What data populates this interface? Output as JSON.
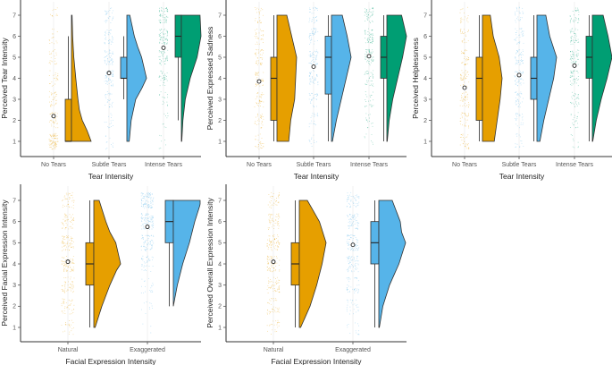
{
  "colors": {
    "No Tears": "#E69F00",
    "Subtle Tears": "#56B4E9",
    "Intense Tears": "#009E73",
    "Natural": "#E69F00",
    "Exaggerated": "#56B4E9"
  },
  "chart_data": [
    {
      "id": "tear-intensity",
      "type": "raincloud",
      "title": "",
      "xlabel": "Tear Intensity",
      "ylabel": "Perceived Tear Intensity",
      "ylim": [
        0.5,
        7.6
      ],
      "yticks": [
        1,
        2,
        3,
        4,
        5,
        6,
        7
      ],
      "grid": false,
      "categories": [
        "No Tears",
        "Subtle Tears",
        "Intense Tears"
      ],
      "groups": [
        {
          "category": "No Tears",
          "mean": 2.2,
          "box": {
            "min": 1,
            "q1": 1,
            "median": 1,
            "q3": 3,
            "max": 6
          },
          "density": [
            [
              1,
              1.0
            ],
            [
              1.5,
              0.8
            ],
            [
              2,
              0.55
            ],
            [
              2.5,
              0.4
            ],
            [
              3,
              0.33
            ],
            [
              4,
              0.22
            ],
            [
              5,
              0.12
            ],
            [
              6,
              0.06
            ],
            [
              7,
              0.03
            ]
          ],
          "jitter_weights": [
            0.38,
            0.16,
            0.14,
            0.1,
            0.1,
            0.07,
            0.05
          ]
        },
        {
          "category": "Subtle Tears",
          "mean": 4.25,
          "box": {
            "min": 3,
            "q1": 4,
            "median": 4,
            "q3": 5,
            "max": 6
          },
          "density": [
            [
              1,
              0.12
            ],
            [
              2,
              0.22
            ],
            [
              3,
              0.45
            ],
            [
              3.5,
              0.75
            ],
            [
              4,
              1.0
            ],
            [
              5,
              0.75
            ],
            [
              5.5,
              0.55
            ],
            [
              6,
              0.38
            ],
            [
              7,
              0.15
            ]
          ],
          "jitter_weights": [
            0.05,
            0.07,
            0.12,
            0.24,
            0.23,
            0.16,
            0.13
          ]
        },
        {
          "category": "Intense Tears",
          "mean": 5.45,
          "box": {
            "min": 2,
            "q1": 5,
            "median": 6,
            "q3": 7,
            "max": 7
          },
          "density": [
            [
              1,
              0.02
            ],
            [
              2,
              0.08
            ],
            [
              3,
              0.2
            ],
            [
              4,
              0.45
            ],
            [
              5,
              0.8
            ],
            [
              6,
              1.0
            ],
            [
              7,
              0.95
            ]
          ],
          "jitter_weights": [
            0.03,
            0.04,
            0.07,
            0.15,
            0.19,
            0.26,
            0.26
          ]
        }
      ]
    },
    {
      "id": "expressed-sadness",
      "type": "raincloud",
      "title": "",
      "xlabel": "Tear Intensity",
      "ylabel": "Perceived Expressed Sadness",
      "ylim": [
        0.5,
        7.6
      ],
      "yticks": [
        1,
        2,
        3,
        4,
        5,
        6,
        7
      ],
      "grid": false,
      "categories": [
        "No Tears",
        "Subtle Tears",
        "Intense Tears"
      ],
      "groups": [
        {
          "category": "No Tears",
          "mean": 3.85,
          "box": {
            "min": 1,
            "q1": 2,
            "median": 4,
            "q3": 5,
            "max": 7
          },
          "density": [
            [
              1,
              0.6
            ],
            [
              2,
              0.7
            ],
            [
              3,
              0.9
            ],
            [
              4,
              0.95
            ],
            [
              5,
              1.0
            ],
            [
              6,
              0.75
            ],
            [
              7,
              0.5
            ]
          ],
          "jitter_weights": [
            0.12,
            0.13,
            0.16,
            0.17,
            0.18,
            0.13,
            0.11
          ]
        },
        {
          "category": "Subtle Tears",
          "mean": 4.55,
          "box": {
            "min": 1,
            "q1": 3.25,
            "median": 5,
            "q3": 6,
            "max": 7
          },
          "density": [
            [
              1,
              0.05
            ],
            [
              2,
              0.25
            ],
            [
              3,
              0.5
            ],
            [
              4,
              0.75
            ],
            [
              5,
              1.0
            ],
            [
              6,
              0.8
            ],
            [
              7,
              0.55
            ]
          ],
          "jitter_weights": [
            0.05,
            0.09,
            0.13,
            0.18,
            0.22,
            0.18,
            0.15
          ]
        },
        {
          "category": "Intense Tears",
          "mean": 5.05,
          "box": {
            "min": 1,
            "q1": 4,
            "median": 5,
            "q3": 6,
            "max": 7
          },
          "density": [
            [
              1,
              0.02
            ],
            [
              2,
              0.12
            ],
            [
              3,
              0.3
            ],
            [
              4,
              0.55
            ],
            [
              5,
              0.8
            ],
            [
              6,
              1.0
            ],
            [
              7,
              0.75
            ]
          ],
          "jitter_weights": [
            0.03,
            0.07,
            0.1,
            0.15,
            0.22,
            0.23,
            0.2
          ]
        }
      ]
    },
    {
      "id": "helplessness",
      "type": "raincloud",
      "title": "",
      "xlabel": "Tear Intensity",
      "ylabel": "Perceived Helplessness",
      "ylim": [
        0.5,
        7.6
      ],
      "yticks": [
        1,
        2,
        3,
        4,
        5,
        6,
        7
      ],
      "grid": false,
      "categories": [
        "No Tears",
        "Subtle Tears",
        "Intense Tears"
      ],
      "groups": [
        {
          "category": "No Tears",
          "mean": 3.55,
          "box": {
            "min": 1,
            "q1": 2,
            "median": 4,
            "q3": 5,
            "max": 7
          },
          "density": [
            [
              1,
              0.6
            ],
            [
              2,
              0.75
            ],
            [
              3,
              0.9
            ],
            [
              4,
              1.0
            ],
            [
              5,
              0.85
            ],
            [
              6,
              0.55
            ],
            [
              7,
              0.4
            ]
          ],
          "jitter_weights": [
            0.14,
            0.15,
            0.17,
            0.18,
            0.16,
            0.11,
            0.09
          ]
        },
        {
          "category": "Subtle Tears",
          "mean": 4.15,
          "box": {
            "min": 1,
            "q1": 3,
            "median": 4,
            "q3": 5,
            "max": 7
          },
          "density": [
            [
              1,
              0.15
            ],
            [
              2,
              0.35
            ],
            [
              3,
              0.6
            ],
            [
              4,
              0.85
            ],
            [
              5,
              1.0
            ],
            [
              6,
              0.65
            ],
            [
              7,
              0.45
            ]
          ],
          "jitter_weights": [
            0.07,
            0.11,
            0.15,
            0.2,
            0.2,
            0.15,
            0.12
          ]
        },
        {
          "category": "Intense Tears",
          "mean": 4.6,
          "box": {
            "min": 1,
            "q1": 4,
            "median": 5,
            "q3": 6,
            "max": 7
          },
          "density": [
            [
              1,
              0.02
            ],
            [
              2,
              0.2
            ],
            [
              3,
              0.45
            ],
            [
              4,
              0.75
            ],
            [
              5,
              1.0
            ],
            [
              6,
              0.8
            ],
            [
              7,
              0.55
            ]
          ],
          "jitter_weights": [
            0.04,
            0.09,
            0.13,
            0.18,
            0.22,
            0.19,
            0.15
          ]
        }
      ]
    },
    {
      "id": "facial-expression",
      "type": "raincloud",
      "title": "",
      "xlabel": "Facial Expression Intensity",
      "ylabel": "Perceived Facial Expression Intensity",
      "ylim": [
        0.5,
        7.6
      ],
      "yticks": [
        1,
        2,
        3,
        4,
        5,
        6,
        7
      ],
      "grid": false,
      "categories": [
        "Natural",
        "Exaggerated"
      ],
      "groups": [
        {
          "category": "Natural",
          "mean": 4.1,
          "box": {
            "min": 1,
            "q1": 3,
            "median": 4,
            "q3": 5,
            "max": 7
          },
          "density": [
            [
              1,
              0.05
            ],
            [
              2,
              0.3
            ],
            [
              3,
              0.6
            ],
            [
              3.7,
              0.85
            ],
            [
              4,
              1.0
            ],
            [
              5,
              0.82
            ],
            [
              5.5,
              0.6
            ],
            [
              6,
              0.45
            ],
            [
              7,
              0.2
            ]
          ],
          "jitter_weights": [
            0.07,
            0.12,
            0.15,
            0.2,
            0.19,
            0.15,
            0.12
          ]
        },
        {
          "category": "Exaggerated",
          "mean": 5.75,
          "box": {
            "min": 2,
            "q1": 5,
            "median": 6,
            "q3": 7,
            "max": 7
          },
          "density": [
            [
              2,
              0.0
            ],
            [
              3,
              0.15
            ],
            [
              4,
              0.35
            ],
            [
              5,
              0.6
            ],
            [
              6,
              0.8
            ],
            [
              6.8,
              1.0
            ],
            [
              7,
              1.0
            ]
          ],
          "jitter_weights": [
            0.01,
            0.03,
            0.06,
            0.12,
            0.2,
            0.28,
            0.3
          ]
        }
      ]
    },
    {
      "id": "overall-expression",
      "type": "raincloud",
      "title": "",
      "xlabel": "Facial Expression Intensity",
      "ylabel": "Perceived Overall Expression Intensity",
      "ylim": [
        0.5,
        7.6
      ],
      "yticks": [
        1,
        2,
        3,
        4,
        5,
        6,
        7
      ],
      "grid": false,
      "categories": [
        "Natural",
        "Exaggerated"
      ],
      "groups": [
        {
          "category": "Natural",
          "mean": 4.1,
          "box": {
            "min": 1,
            "q1": 3,
            "median": 4,
            "q3": 5,
            "max": 7
          },
          "density": [
            [
              1,
              0.05
            ],
            [
              2,
              0.4
            ],
            [
              3,
              0.65
            ],
            [
              4,
              0.85
            ],
            [
              5,
              1.0
            ],
            [
              6,
              0.75
            ],
            [
              7,
              0.3
            ]
          ],
          "jitter_weights": [
            0.07,
            0.12,
            0.16,
            0.19,
            0.2,
            0.15,
            0.11
          ]
        },
        {
          "category": "Exaggerated",
          "mean": 4.9,
          "box": {
            "min": 1,
            "q1": 4,
            "median": 5,
            "q3": 6,
            "max": 7
          },
          "density": [
            [
              1,
              0.02
            ],
            [
              2,
              0.15
            ],
            [
              3,
              0.4
            ],
            [
              4,
              0.75
            ],
            [
              5,
              1.0
            ],
            [
              5.5,
              0.85
            ],
            [
              6,
              0.8
            ],
            [
              7,
              0.5
            ]
          ],
          "jitter_weights": [
            0.04,
            0.08,
            0.13,
            0.19,
            0.22,
            0.19,
            0.15
          ]
        }
      ]
    }
  ]
}
